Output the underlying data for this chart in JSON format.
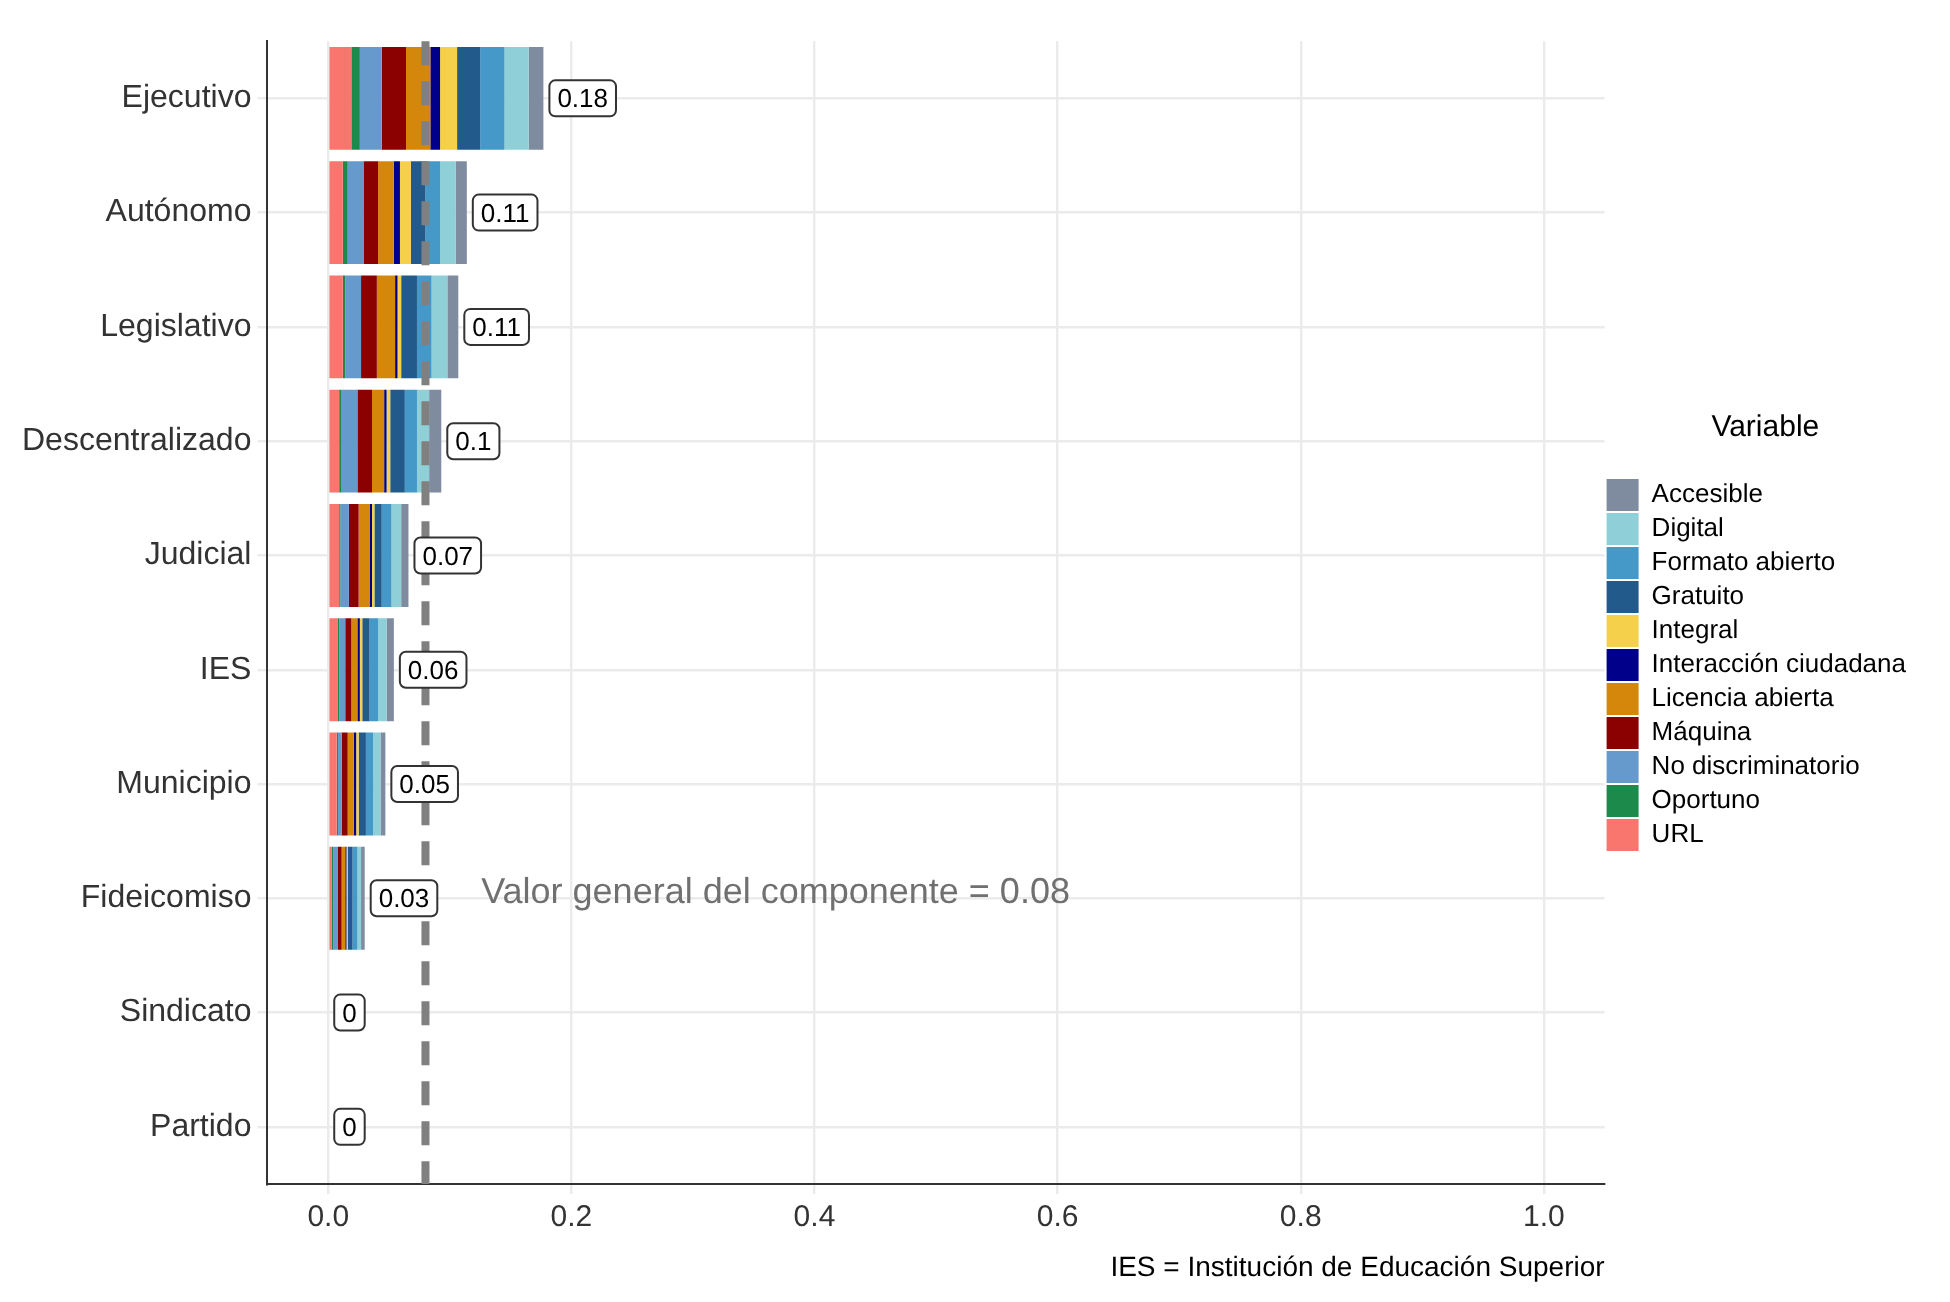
{
  "chart_data": {
    "type": "bar",
    "orientation": "horizontal",
    "stacked": true,
    "legend_title": "Variable",
    "legend": "right",
    "grid": true,
    "categories": [
      "Ejecutivo",
      "Autónomo",
      "Legislativo",
      "Descentralizado",
      "Judicial",
      "IES",
      "Municipio",
      "Fideicomiso",
      "Sindicato",
      "Partido"
    ],
    "series": [
      {
        "name": "URL",
        "color": "#f8766d",
        "values": [
          0.019,
          0.012,
          0.012,
          0.009,
          0.009,
          0.008,
          0.007,
          0.003,
          0,
          0
        ]
      },
      {
        "name": "Oportuno",
        "color": "#1b8a4b",
        "values": [
          0.007,
          0.004,
          0.002,
          0.002,
          0.001,
          0.001,
          0.001,
          0.001,
          0,
          0
        ]
      },
      {
        "name": "No discriminatorio",
        "color": "#6699cc",
        "values": [
          0.018,
          0.013,
          0.013,
          0.013,
          0.007,
          0.005,
          0.003,
          0.004,
          0,
          0
        ]
      },
      {
        "name": "Máquina",
        "color": "#8b0000",
        "values": [
          0.02,
          0.012,
          0.013,
          0.012,
          0.008,
          0.005,
          0.005,
          0.003,
          0,
          0
        ]
      },
      {
        "name": "Licencia abierta",
        "color": "#d4870a",
        "values": [
          0.02,
          0.013,
          0.015,
          0.01,
          0.009,
          0.005,
          0.005,
          0.003,
          0,
          0
        ]
      },
      {
        "name": "Interacción ciudadana",
        "color": "#00008b",
        "values": [
          0.008,
          0.005,
          0.002,
          0.002,
          0.002,
          0.002,
          0.002,
          0.001,
          0,
          0
        ]
      },
      {
        "name": "Integral",
        "color": "#f5d04a",
        "values": [
          0.014,
          0.009,
          0.003,
          0.003,
          0.002,
          0.002,
          0.002,
          0.001,
          0,
          0
        ]
      },
      {
        "name": "Gratuito",
        "color": "#225a8c",
        "values": [
          0.019,
          0.012,
          0.013,
          0.012,
          0.006,
          0.006,
          0.006,
          0.004,
          0,
          0
        ]
      },
      {
        "name": "Formato abierto",
        "color": "#4499c9",
        "values": [
          0.02,
          0.012,
          0.012,
          0.01,
          0.008,
          0.007,
          0.006,
          0.004,
          0,
          0
        ]
      },
      {
        "name": "Digital",
        "color": "#8ecfd8",
        "values": [
          0.02,
          0.013,
          0.013,
          0.01,
          0.008,
          0.007,
          0.006,
          0.003,
          0,
          0
        ]
      },
      {
        "name": "Accesible",
        "color": "#7f8c9f",
        "values": [
          0.012,
          0.009,
          0.009,
          0.01,
          0.006,
          0.006,
          0.004,
          0.003,
          0,
          0
        ]
      }
    ],
    "totals": [
      "0.18",
      "0.11",
      "0.11",
      "0.1",
      "0.07",
      "0.06",
      "0.05",
      "0.03",
      "0",
      "0"
    ],
    "xlim": [
      -0.05,
      1.05
    ],
    "xticks": [
      {
        "value": 0,
        "label": "0.0"
      },
      {
        "value": 0.2,
        "label": "0.2"
      },
      {
        "value": 0.4,
        "label": "0.4"
      },
      {
        "value": 0.6,
        "label": "0.6"
      },
      {
        "value": 0.8,
        "label": "0.8"
      },
      {
        "value": 1,
        "label": "1.0"
      }
    ],
    "ref_lines": [
      {
        "axis": "x",
        "value": 0.08,
        "color": "#808080",
        "line_style": "dashed"
      }
    ],
    "annotations": [
      "Valor general del componente = 0.08",
      "IES = Institución de Educación Superior"
    ]
  }
}
